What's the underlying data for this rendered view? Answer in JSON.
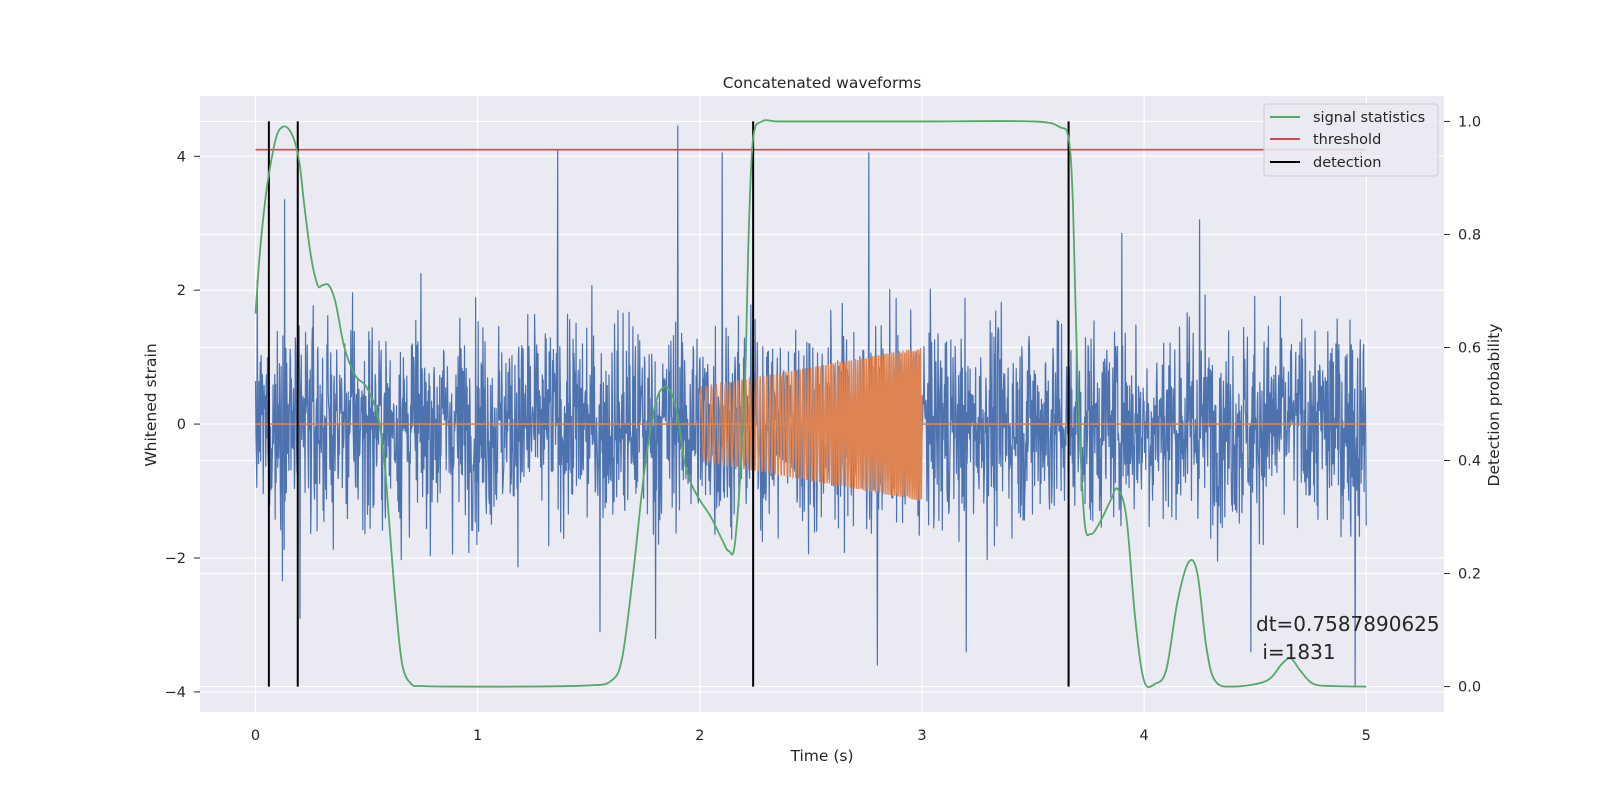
{
  "chart_data": {
    "type": "line",
    "title": "Concatenated waveforms",
    "xlabel": "Time (s)",
    "ylabel": "Whitened strain",
    "ylabel_right": "Detection probability",
    "xlim": [
      -0.25,
      5.35
    ],
    "ylim": [
      -4.3,
      4.9
    ],
    "ylim_right": [
      -0.045,
      1.045
    ],
    "xticks": [
      0,
      1,
      2,
      3,
      4,
      5
    ],
    "yticks": [
      -4,
      -2,
      0,
      2,
      4
    ],
    "yticks_right": [
      0.0,
      0.2,
      0.4,
      0.6,
      0.8,
      1.0
    ],
    "xtick_labels": [
      "0",
      "1",
      "2",
      "3",
      "4",
      "5"
    ],
    "ytick_labels": [
      "−4",
      "−2",
      "0",
      "2",
      "4"
    ],
    "ytick_right_labels": [
      "0.0",
      "0.2",
      "0.4",
      "0.6",
      "0.8",
      "1.0"
    ],
    "grid": true,
    "legend_position": "top-right",
    "colors": {
      "noise": "#4c72b0",
      "injection": "#dd8452",
      "signal_statistics": "#55a868",
      "threshold": "#c44e52",
      "detection": "#000000",
      "background": "#eaeaf2",
      "grid": "#ffffff"
    },
    "series": [
      {
        "name": "",
        "axis": "left",
        "description_values": "whitened strain noise, approx. gaussian, std ~0.9, x from 0 to 5 s",
        "x_range": [
          0,
          5
        ],
        "y_envelope": [
          -3.9,
          4.45
        ],
        "spikes": [
          {
            "x": 0.13,
            "y": 3.35
          },
          {
            "x": 0.2,
            "y": -2.9
          },
          {
            "x": 1.36,
            "y": 4.1
          },
          {
            "x": 1.9,
            "y": 4.45
          },
          {
            "x": 2.1,
            "y": 4.05
          },
          {
            "x": 2.76,
            "y": 4.05
          },
          {
            "x": 1.55,
            "y": -3.1
          },
          {
            "x": 1.8,
            "y": -3.2
          },
          {
            "x": 2.8,
            "y": -3.6
          },
          {
            "x": 3.2,
            "y": -3.4
          },
          {
            "x": 4.48,
            "y": -3.4
          },
          {
            "x": 4.95,
            "y": -3.9
          },
          {
            "x": 3.9,
            "y": 2.85
          },
          {
            "x": 4.25,
            "y": 3.05
          }
        ]
      },
      {
        "name": "",
        "axis": "left",
        "description_values": "injected chirp between 2.0 and 3.0 s, amplitude growing from 0.55 to 1.15",
        "x_range": [
          2.0,
          3.0
        ],
        "amplitude_start": 0.55,
        "amplitude_end": 1.15,
        "freq_start": 40,
        "freq_end": 130
      },
      {
        "name": "signal statistics",
        "axis": "right",
        "x": [
          0.0,
          0.02,
          0.05,
          0.08,
          0.1,
          0.12,
          0.14,
          0.16,
          0.18,
          0.2,
          0.22,
          0.25,
          0.28,
          0.3,
          0.33,
          0.36,
          0.4,
          0.45,
          0.5,
          0.55,
          0.58,
          0.6,
          0.63,
          0.66,
          0.7,
          0.75,
          0.9,
          1.2,
          1.5,
          1.6,
          1.65,
          1.7,
          1.75,
          1.8,
          1.84,
          1.87,
          1.9,
          1.93,
          1.96,
          2.0,
          2.05,
          2.1,
          2.13,
          2.16,
          2.2,
          2.22,
          2.24,
          2.28,
          2.35,
          2.5,
          3.0,
          3.5,
          3.62,
          3.66,
          3.68,
          3.7,
          3.73,
          3.76,
          3.8,
          3.85,
          3.88,
          3.92,
          3.96,
          4.0,
          4.05,
          4.1,
          4.15,
          4.2,
          4.24,
          4.28,
          4.32,
          4.4,
          4.55,
          4.62,
          4.66,
          4.7,
          4.76,
          4.85,
          5.0
        ],
        "y": [
          0.66,
          0.77,
          0.88,
          0.95,
          0.98,
          0.99,
          0.99,
          0.98,
          0.96,
          0.92,
          0.85,
          0.76,
          0.71,
          0.71,
          0.71,
          0.68,
          0.6,
          0.55,
          0.53,
          0.48,
          0.4,
          0.3,
          0.15,
          0.04,
          0.005,
          0.001,
          0.0,
          0.0,
          0.002,
          0.01,
          0.05,
          0.2,
          0.38,
          0.5,
          0.53,
          0.52,
          0.48,
          0.4,
          0.36,
          0.33,
          0.3,
          0.26,
          0.24,
          0.26,
          0.5,
          0.8,
          0.97,
          1.0,
          1.0,
          1.0,
          1.0,
          1.0,
          0.99,
          0.97,
          0.85,
          0.55,
          0.3,
          0.27,
          0.29,
          0.33,
          0.35,
          0.3,
          0.12,
          0.01,
          0.005,
          0.03,
          0.15,
          0.22,
          0.2,
          0.07,
          0.01,
          0.0,
          0.01,
          0.04,
          0.05,
          0.03,
          0.005,
          0.001,
          0.0
        ]
      },
      {
        "name": "threshold",
        "axis": "right",
        "x": [
          0.0,
          5.0
        ],
        "y": [
          0.95,
          0.95
        ]
      },
      {
        "name": "detection",
        "axis": "right",
        "vertical_lines_x": [
          0.06,
          0.19,
          2.24,
          3.66
        ],
        "y_range": [
          0.0,
          1.0
        ]
      }
    ],
    "legend": [
      "signal statistics",
      "threshold",
      "detection"
    ],
    "annotation": {
      "line1": "dt=0.7587890625",
      "line2": " i=1831",
      "x": 4.5,
      "y_right": 0.105
    }
  }
}
